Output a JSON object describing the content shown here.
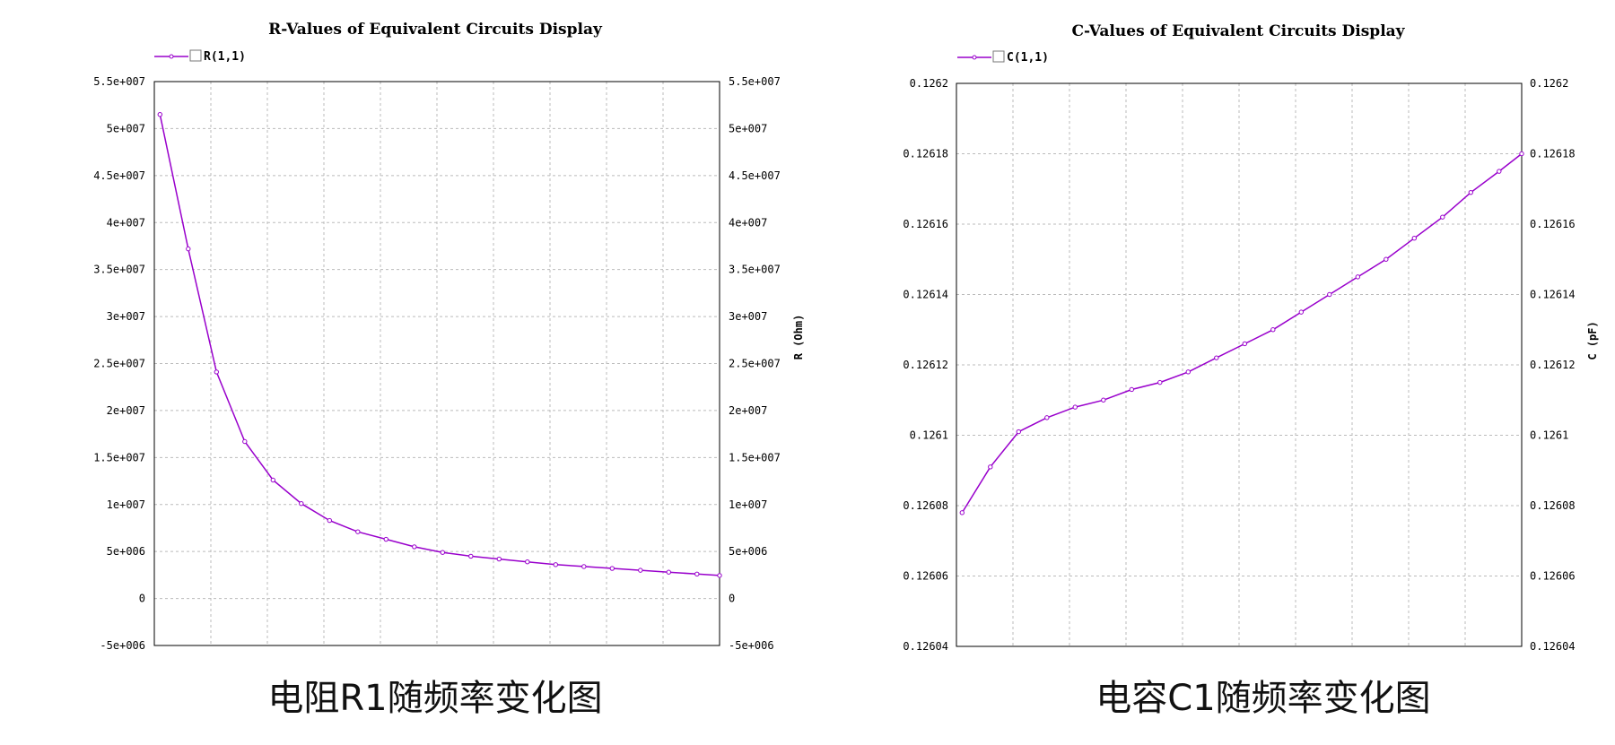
{
  "chart_data": [
    {
      "type": "line",
      "title": "R-Values of Equivalent Circuits Display",
      "ylabel": "R (Ohm)",
      "xlabel": "",
      "ylim": [
        -5000000,
        55000000
      ],
      "yticks": [
        "5.5e+007",
        "5e+007",
        "4.5e+007",
        "4e+007",
        "3.5e+007",
        "3e+007",
        "2.5e+007",
        "2e+007",
        "1.5e+007",
        "1e+007",
        "5e+006",
        "0",
        "-5e+006"
      ],
      "ytick_values": [
        55000000,
        50000000,
        45000000,
        40000000,
        35000000,
        30000000,
        25000000,
        20000000,
        15000000,
        10000000,
        5000000,
        0,
        -5000000
      ],
      "xlim": [
        0,
        10
      ],
      "x_gridlines": 10,
      "grid": true,
      "legend": "top-left",
      "series": [
        {
          "name": "R(1,1)",
          "color": "#9900cc",
          "x": [
            0.1,
            0.6,
            1.1,
            1.6,
            2.1,
            2.6,
            3.1,
            3.6,
            4.1,
            4.6,
            5.1,
            5.6,
            6.1,
            6.6,
            7.1,
            7.6,
            8.1,
            8.6,
            9.1,
            9.6,
            10.0
          ],
          "values": [
            51500000,
            37200000,
            24100000,
            16700000,
            12600000,
            10100000,
            8300000,
            7100000,
            6300000,
            5500000,
            4900000,
            4500000,
            4200000,
            3900000,
            3600000,
            3400000,
            3200000,
            3000000,
            2800000,
            2600000,
            2450000
          ]
        }
      ],
      "caption": "电阻R1随频率变化图"
    },
    {
      "type": "line",
      "title": "C-Values of Equivalent Circuits Display",
      "ylabel": "C (pF)",
      "xlabel": "",
      "ylim": [
        0.12604,
        0.1262
      ],
      "yticks": [
        "0.1262",
        "0.12618",
        "0.12616",
        "0.12614",
        "0.12612",
        "0.1261",
        "0.12608",
        "0.12606",
        "0.12604"
      ],
      "ytick_values": [
        0.1262,
        0.12618,
        0.12616,
        0.12614,
        0.12612,
        0.1261,
        0.12608,
        0.12606,
        0.12604
      ],
      "xlim": [
        0,
        10
      ],
      "x_gridlines": 10,
      "grid": true,
      "legend": "top-left",
      "series": [
        {
          "name": "C(1,1)",
          "color": "#9900cc",
          "x": [
            0.1,
            0.6,
            1.1,
            1.6,
            2.1,
            2.6,
            3.1,
            3.6,
            4.1,
            4.6,
            5.1,
            5.6,
            6.1,
            6.6,
            7.1,
            7.6,
            8.1,
            8.6,
            9.1,
            9.6,
            10.0
          ],
          "values": [
            0.126078,
            0.126091,
            0.126101,
            0.126105,
            0.126108,
            0.12611,
            0.126113,
            0.126115,
            0.126118,
            0.126122,
            0.126126,
            0.12613,
            0.126135,
            0.12614,
            0.126145,
            0.12615,
            0.126156,
            0.126162,
            0.126169,
            0.126175,
            0.12618
          ]
        }
      ],
      "caption": "电容C1随频率变化图"
    }
  ]
}
